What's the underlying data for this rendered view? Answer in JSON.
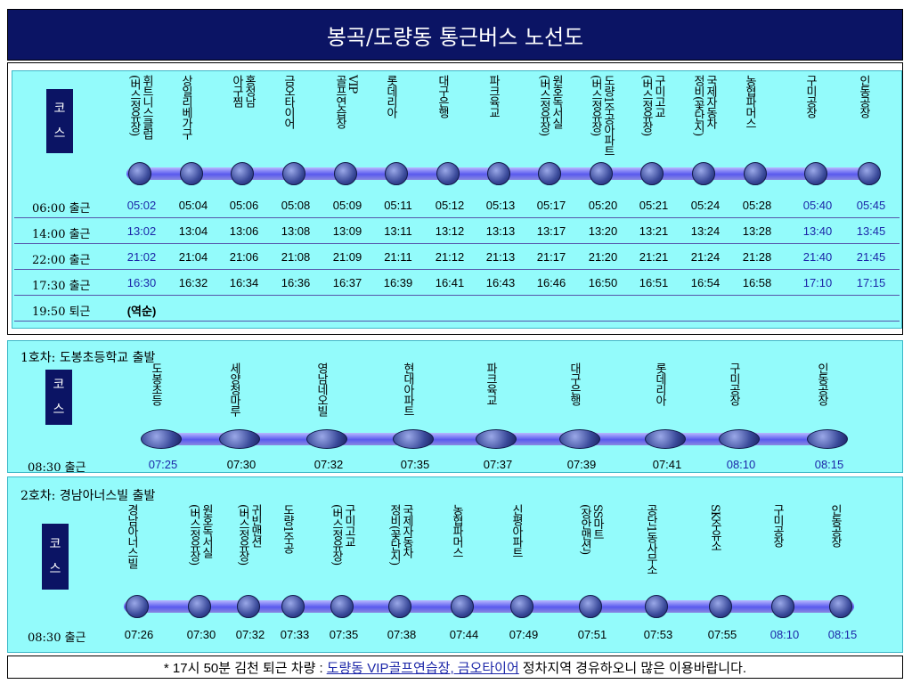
{
  "title": "봉곡/도량동 통근버스 노선도",
  "course_label": [
    "코",
    "스"
  ],
  "main": {
    "stops": [
      "휘트니스클럽\n(버스정유장)",
      "상일리베가구",
      "홍정남\n아구찜",
      "금오타이어",
      "VIP\n골프연습장",
      "롯데리아",
      "대구은행",
      "파크육교",
      "원호독서실\n(버스정유장)",
      "도량1주공아파트\n(버스정유장)",
      "구미고교\n(버스정유장)",
      "국제자동차\n정비(꽃단지)",
      "농협파머스",
      "구미공장",
      "인동공장"
    ],
    "rows": [
      {
        "label": "06:00 출근",
        "times": [
          "05:02",
          "05:04",
          "05:06",
          "05:08",
          "05:09",
          "05:11",
          "05:12",
          "05:13",
          "05:17",
          "05:20",
          "05:21",
          "05:24",
          "05:28",
          "05:40",
          "05:45"
        ]
      },
      {
        "label": "14:00 출근",
        "times": [
          "13:02",
          "13:04",
          "13:06",
          "13:08",
          "13:09",
          "13:11",
          "13:12",
          "13:13",
          "13:17",
          "13:20",
          "13:21",
          "13:24",
          "13:28",
          "13:40",
          "13:45"
        ]
      },
      {
        "label": "22:00 출근",
        "times": [
          "21:02",
          "21:04",
          "21:06",
          "21:08",
          "21:09",
          "21:11",
          "21:12",
          "21:13",
          "21:17",
          "21:20",
          "21:21",
          "21:24",
          "21:28",
          "21:40",
          "21:45"
        ]
      },
      {
        "label": "17:30 출근",
        "times": [
          "16:30",
          "16:32",
          "16:34",
          "16:36",
          "16:37",
          "16:39",
          "16:41",
          "16:43",
          "16:46",
          "16:50",
          "16:51",
          "16:54",
          "16:58",
          "17:10",
          "17:15"
        ]
      },
      {
        "label": "19:50 퇴근",
        "note": "(역순)"
      }
    ]
  },
  "bus1": {
    "title": "1호차: 도봉초등학교 출발",
    "stops": [
      "도봉초등",
      "세양청마루",
      "영남네오빌",
      "현대아파트",
      "파크육교",
      "대구은행",
      "롯데리아",
      "구미공장",
      "인동공장"
    ],
    "row": {
      "label": "08:30 출근",
      "times": [
        "07:25",
        "07:30",
        "07:32",
        "07:35",
        "07:37",
        "07:39",
        "07:41",
        "08:10",
        "08:15"
      ]
    }
  },
  "bus2": {
    "title": "2호차: 경남아너스빌 출발",
    "stops": [
      "경남아너스빌",
      "원호독서실\n(버스정유장)",
      "귀빈맨션\n(버스정유장)",
      "도량1주공",
      "구미고교\n(버스정유장)",
      "국제자동차\n정비(꽃단지)",
      "농협파머스",
      "신평아파트",
      "SS마트\n(장안맨션)",
      "공단1동사무소",
      "SK주유소",
      "구미공장",
      "인동공장"
    ],
    "row": {
      "label": "08:30 출근",
      "times": [
        "07:26",
        "07:30",
        "07:32",
        "07:33",
        "07:35",
        "07:38",
        "07:44",
        "07:49",
        "07:51",
        "07:53",
        "07:55",
        "08:10",
        "08:15"
      ]
    }
  },
  "footer": {
    "prefix": "* 17시 50분 김천 퇴근 차량 :",
    "link": "도량동 VIP골프연습장, 금오타이어",
    "suffix": "정차지역 경유하오니 많은 이용바랍니다."
  },
  "colors": {
    "navy": "#0b1464",
    "panel": "#93fbfb",
    "highlight": "#1c27a8"
  }
}
